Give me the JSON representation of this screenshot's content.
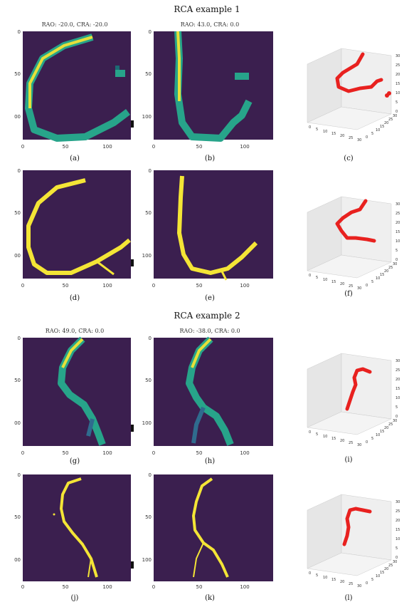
{
  "examples": [
    {
      "title": "RCA example 1",
      "rows": [
        {
          "views": [
            {
              "title": "RAO: -20.0, CRA: -20.0",
              "caption": "(a)",
              "kind": "heatmap"
            },
            {
              "title": "RAO: 43.0, CRA: 0.0",
              "caption": "(b)",
              "kind": "heatmap"
            }
          ],
          "plot3d_caption": "(c)"
        },
        {
          "views": [
            {
              "title": "",
              "caption": "(d)",
              "kind": "mask"
            },
            {
              "title": "",
              "caption": "(e)",
              "kind": "mask"
            }
          ],
          "plot3d_caption": "(f)"
        }
      ]
    },
    {
      "title": "RCA example 2",
      "rows": [
        {
          "views": [
            {
              "title": "RAO: 49.0, CRA: 0.0",
              "caption": "(g)",
              "kind": "heatmap"
            },
            {
              "title": "RAO: -38.0, CRA: 0.0",
              "caption": "(h)",
              "kind": "heatmap"
            }
          ],
          "plot3d_caption": "(i)"
        },
        {
          "views": [
            {
              "title": "",
              "caption": "(j)",
              "kind": "mask"
            },
            {
              "title": "",
              "caption": "(k)",
              "kind": "mask"
            }
          ],
          "plot3d_caption": "(l)"
        }
      ]
    }
  ],
  "image_axes": {
    "x_ticks": [
      "0",
      "50",
      "100"
    ],
    "y_ticks": [
      "0",
      "50",
      "100"
    ]
  },
  "plot3d_axes": {
    "x_ticks": [
      "0",
      "5",
      "10",
      "15",
      "20",
      "25",
      "30"
    ],
    "y_ticks": [
      "0",
      "5",
      "10",
      "15",
      "20",
      "25",
      "30"
    ],
    "z_ticks": [
      "0",
      "5",
      "10",
      "15",
      "20",
      "25",
      "30"
    ]
  },
  "colors": {
    "background": "#3b1f4f",
    "vessel_high": "#f4e536",
    "vessel_mid": "#27a48a",
    "vessel_low": "#2f6b8e",
    "point_red": "#e8211f",
    "pane": "#ececec"
  }
}
